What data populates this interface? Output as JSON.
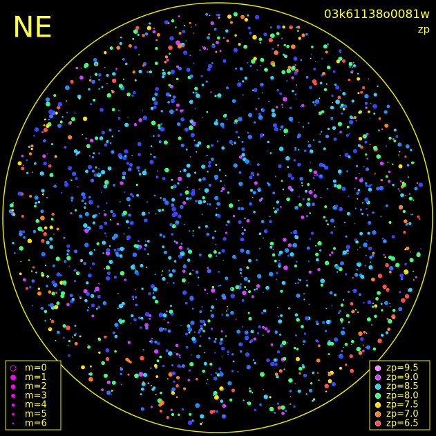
{
  "header": {
    "title": "NE",
    "frame_id": "03k61138o0081w",
    "subtitle": "zp"
  },
  "legend_m": {
    "labels": [
      "m=0",
      "m=1",
      "m=2",
      "m=3",
      "m=4",
      "m=5",
      "m=6"
    ]
  },
  "legend_zp": {
    "labels": [
      "zp=9.5",
      "zp=9.0",
      "zp=8.5",
      "zp=8.0",
      "zp=7.5",
      "zp=7.0",
      "zp=6.5"
    ],
    "colors": [
      "#ff80ff",
      "#d040ff",
      "#30d0ff",
      "#40ff80",
      "#ffe000",
      "#ff8020",
      "#ff5050"
    ]
  }
}
